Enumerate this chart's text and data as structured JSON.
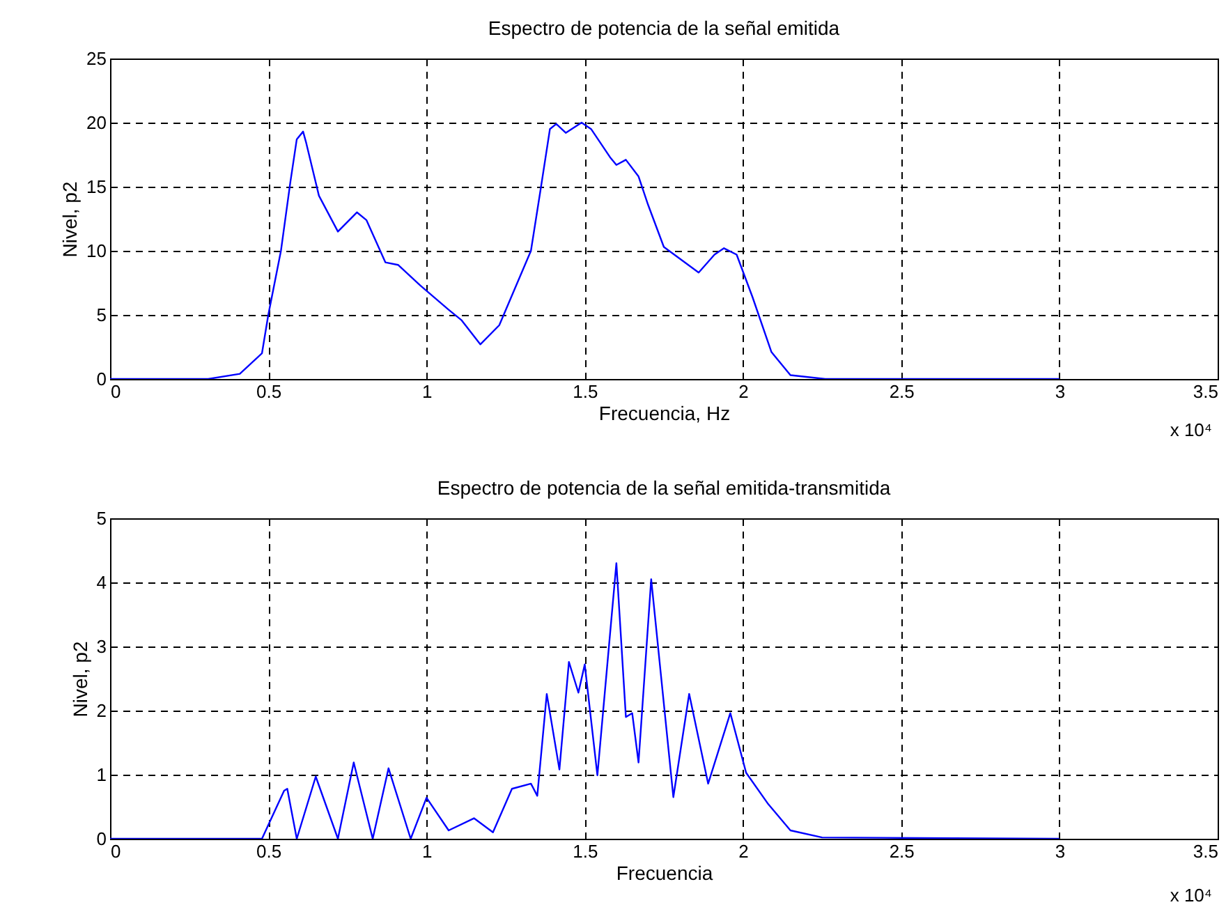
{
  "chart_data": [
    {
      "type": "line",
      "title": "Espectro de potencia de la señal emitida",
      "xlabel": "Frecuencia, Hz",
      "ylabel": "Nivel, p2",
      "annotations": [
        "x 10⁴"
      ],
      "x": [
        0,
        0.31,
        0.41,
        0.48,
        0.5,
        0.54,
        0.57,
        0.59,
        0.61,
        0.62,
        0.66,
        0.72,
        0.78,
        0.81,
        0.87,
        0.91,
        0.98,
        1.07,
        1.11,
        1.17,
        1.23,
        1.33,
        1.36,
        1.39,
        1.41,
        1.44,
        1.49,
        1.52,
        1.58,
        1.6,
        1.63,
        1.67,
        1.7,
        1.75,
        1.86,
        1.91,
        1.94,
        1.98,
        2.03,
        2.09,
        2.15,
        2.26,
        3.0
      ],
      "series": [
        {
          "color": "#0000ff",
          "values": [
            0,
            0,
            0.4,
            2,
            5,
            10,
            15.4,
            18.7,
            19.3,
            18.4,
            14.3,
            11.5,
            13,
            12.4,
            9.1,
            8.9,
            7.3,
            5.4,
            4.6,
            2.7,
            4.2,
            10,
            14.7,
            19.5,
            19.9,
            19.2,
            20,
            19.5,
            17.3,
            16.7,
            17.1,
            15.8,
            13.6,
            10.3,
            8.3,
            9.7,
            10.2,
            9.7,
            6.4,
            2.1,
            0.3,
            0,
            0
          ]
        }
      ],
      "xlim": [
        0,
        3.5
      ],
      "xticks": [
        0,
        0.5,
        1,
        1.5,
        2,
        2.5,
        3,
        3.5
      ],
      "ylim": [
        0,
        25
      ],
      "yticks": [
        0,
        5,
        10,
        15,
        20,
        25
      ],
      "grid": true
    },
    {
      "type": "line",
      "title": "Espectro de potencia de la señal emitida-transmitida",
      "xlabel": "Frecuencia",
      "ylabel": "Nivel, p2",
      "annotations": [
        "x 10⁴"
      ],
      "x": [
        0,
        0.48,
        0.55,
        0.56,
        0.59,
        0.65,
        0.72,
        0.77,
        0.83,
        0.88,
        0.95,
        1.0,
        1.07,
        1.15,
        1.21,
        1.27,
        1.33,
        1.35,
        1.38,
        1.42,
        1.45,
        1.48,
        1.5,
        1.54,
        1.6,
        1.63,
        1.65,
        1.67,
        1.71,
        1.78,
        1.83,
        1.89,
        1.96,
        2.01,
        2.08,
        2.15,
        2.25,
        3.0
      ],
      "series": [
        {
          "color": "#0000ff",
          "values": [
            0,
            0,
            0.75,
            0.78,
            0,
            0.97,
            0,
            1.19,
            0,
            1.1,
            0,
            0.64,
            0.13,
            0.32,
            0.1,
            0.78,
            0.86,
            0.67,
            2.26,
            1.08,
            2.76,
            2.28,
            2.72,
            0.99,
            4.3,
            1.9,
            1.96,
            1.19,
            4.05,
            0.65,
            2.26,
            0.86,
            1.96,
            1.03,
            0.54,
            0.13,
            0.02,
            0
          ]
        }
      ],
      "xlim": [
        0,
        3.5
      ],
      "xticks": [
        0,
        0.5,
        1,
        1.5,
        2,
        2.5,
        3,
        3.5
      ],
      "ylim": [
        0,
        5
      ],
      "yticks": [
        0,
        1,
        2,
        3,
        4,
        5
      ],
      "grid": true
    }
  ]
}
